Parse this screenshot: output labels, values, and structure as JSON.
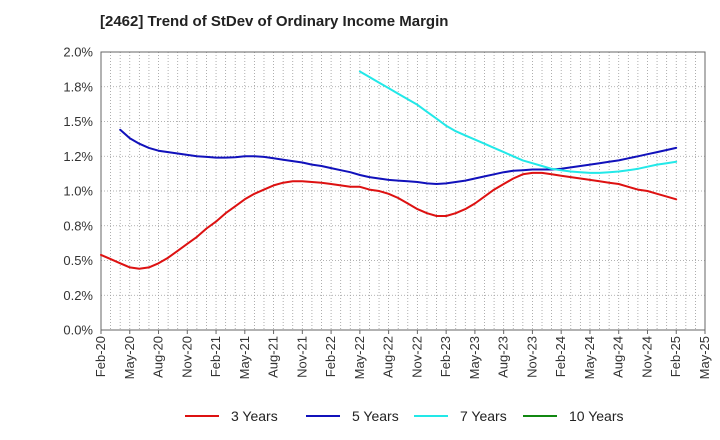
{
  "title": "[2462]  Trend of StDev of Ordinary Income Margin",
  "chart_data": {
    "type": "line",
    "title": "[2462]  Trend of StDev of Ordinary Income Margin",
    "xlabel": "",
    "ylabel": "",
    "x_ticks": [
      "Feb-20",
      "May-20",
      "Aug-20",
      "Nov-20",
      "Feb-21",
      "May-21",
      "Aug-21",
      "Nov-21",
      "Feb-22",
      "May-22",
      "Aug-22",
      "Nov-22",
      "Feb-23",
      "May-23",
      "Aug-23",
      "Nov-23",
      "Feb-24",
      "May-24",
      "Aug-24",
      "Nov-24",
      "Feb-25",
      "May-25"
    ],
    "y_ticks": [
      "0.0%",
      "0.2%",
      "0.5%",
      "0.8%",
      "1.0%",
      "1.2%",
      "1.5%",
      "1.8%",
      "2.0%"
    ],
    "ylim": [
      0,
      2.0
    ],
    "grid": true,
    "legend_position": "bottom",
    "series": [
      {
        "name": "3 Years",
        "color": "#dd1111",
        "points": [
          [
            "Feb-20",
            0.54
          ],
          [
            "Mar-20",
            0.51
          ],
          [
            "Apr-20",
            0.48
          ],
          [
            "May-20",
            0.45
          ],
          [
            "Jun-20",
            0.44
          ],
          [
            "Jul-20",
            0.45
          ],
          [
            "Aug-20",
            0.48
          ],
          [
            "Sep-20",
            0.52
          ],
          [
            "Oct-20",
            0.57
          ],
          [
            "Nov-20",
            0.62
          ],
          [
            "Dec-20",
            0.67
          ],
          [
            "Jan-21",
            0.73
          ],
          [
            "Feb-21",
            0.78
          ],
          [
            "Mar-21",
            0.84
          ],
          [
            "Apr-21",
            0.89
          ],
          [
            "May-21",
            0.94
          ],
          [
            "Jun-21",
            0.98
          ],
          [
            "Jul-21",
            1.01
          ],
          [
            "Aug-21",
            1.04
          ],
          [
            "Sep-21",
            1.06
          ],
          [
            "Oct-21",
            1.07
          ],
          [
            "Nov-21",
            1.07
          ],
          [
            "Dec-21",
            1.065
          ],
          [
            "Jan-22",
            1.06
          ],
          [
            "Feb-22",
            1.05
          ],
          [
            "Mar-22",
            1.04
          ],
          [
            "Apr-22",
            1.03
          ],
          [
            "May-22",
            1.03
          ],
          [
            "Jun-22",
            1.01
          ],
          [
            "Jul-22",
            1.0
          ],
          [
            "Aug-22",
            0.98
          ],
          [
            "Sep-22",
            0.95
          ],
          [
            "Oct-22",
            0.91
          ],
          [
            "Nov-22",
            0.87
          ],
          [
            "Dec-22",
            0.84
          ],
          [
            "Jan-23",
            0.82
          ],
          [
            "Feb-23",
            0.82
          ],
          [
            "Mar-23",
            0.84
          ],
          [
            "Apr-23",
            0.87
          ],
          [
            "May-23",
            0.91
          ],
          [
            "Jun-23",
            0.96
          ],
          [
            "Jul-23",
            1.01
          ],
          [
            "Aug-23",
            1.05
          ],
          [
            "Sep-23",
            1.09
          ],
          [
            "Oct-23",
            1.12
          ],
          [
            "Nov-23",
            1.13
          ],
          [
            "Dec-23",
            1.13
          ],
          [
            "Jan-24",
            1.12
          ],
          [
            "Feb-24",
            1.11
          ],
          [
            "Mar-24",
            1.1
          ],
          [
            "Apr-24",
            1.09
          ],
          [
            "May-24",
            1.08
          ],
          [
            "Jun-24",
            1.07
          ],
          [
            "Jul-24",
            1.06
          ],
          [
            "Aug-24",
            1.05
          ],
          [
            "Sep-24",
            1.03
          ],
          [
            "Oct-24",
            1.01
          ],
          [
            "Nov-24",
            1.0
          ],
          [
            "Dec-24",
            0.98
          ],
          [
            "Jan-25",
            0.96
          ],
          [
            "Feb-25",
            0.94
          ]
        ]
      },
      {
        "name": "5 Years",
        "color": "#1111bb",
        "points": [
          [
            "Apr-20",
            1.44
          ],
          [
            "May-20",
            1.38
          ],
          [
            "Jun-20",
            1.34
          ],
          [
            "Jul-20",
            1.31
          ],
          [
            "Aug-20",
            1.29
          ],
          [
            "Sep-20",
            1.28
          ],
          [
            "Oct-20",
            1.27
          ],
          [
            "Nov-20",
            1.26
          ],
          [
            "Dec-20",
            1.25
          ],
          [
            "Jan-21",
            1.245
          ],
          [
            "Feb-21",
            1.24
          ],
          [
            "Mar-21",
            1.24
          ],
          [
            "Apr-21",
            1.243
          ],
          [
            "May-21",
            1.25
          ],
          [
            "Jun-21",
            1.25
          ],
          [
            "Jul-21",
            1.245
          ],
          [
            "Aug-21",
            1.235
          ],
          [
            "Sep-21",
            1.225
          ],
          [
            "Oct-21",
            1.215
          ],
          [
            "Nov-21",
            1.205
          ],
          [
            "Dec-21",
            1.19
          ],
          [
            "Jan-22",
            1.18
          ],
          [
            "Feb-22",
            1.165
          ],
          [
            "Mar-22",
            1.15
          ],
          [
            "Apr-22",
            1.135
          ],
          [
            "May-22",
            1.115
          ],
          [
            "Jun-22",
            1.1
          ],
          [
            "Jul-22",
            1.09
          ],
          [
            "Aug-22",
            1.08
          ],
          [
            "Sep-22",
            1.075
          ],
          [
            "Oct-22",
            1.07
          ],
          [
            "Nov-22",
            1.065
          ],
          [
            "Dec-22",
            1.055
          ],
          [
            "Jan-23",
            1.05
          ],
          [
            "Feb-23",
            1.055
          ],
          [
            "Mar-23",
            1.065
          ],
          [
            "Apr-23",
            1.075
          ],
          [
            "May-23",
            1.09
          ],
          [
            "Jun-23",
            1.105
          ],
          [
            "Jul-23",
            1.12
          ],
          [
            "Aug-23",
            1.135
          ],
          [
            "Sep-23",
            1.145
          ],
          [
            "Oct-23",
            1.15
          ],
          [
            "Nov-23",
            1.155
          ],
          [
            "Dec-23",
            1.155
          ],
          [
            "Jan-24",
            1.155
          ],
          [
            "Feb-24",
            1.16
          ],
          [
            "Mar-24",
            1.17
          ],
          [
            "Apr-24",
            1.18
          ],
          [
            "May-24",
            1.19
          ],
          [
            "Jun-24",
            1.2
          ],
          [
            "Jul-24",
            1.21
          ],
          [
            "Aug-24",
            1.22
          ],
          [
            "Sep-24",
            1.235
          ],
          [
            "Oct-24",
            1.25
          ],
          [
            "Nov-24",
            1.265
          ],
          [
            "Dec-24",
            1.28
          ],
          [
            "Jan-25",
            1.295
          ],
          [
            "Feb-25",
            1.31
          ]
        ]
      },
      {
        "name": "7 Years",
        "color": "#22e8e8",
        "points": [
          [
            "May-22",
            1.86
          ],
          [
            "Jun-22",
            1.82
          ],
          [
            "Jul-22",
            1.78
          ],
          [
            "Aug-22",
            1.74
          ],
          [
            "Sep-22",
            1.7
          ],
          [
            "Oct-22",
            1.66
          ],
          [
            "Nov-22",
            1.62
          ],
          [
            "Dec-22",
            1.57
          ],
          [
            "Jan-23",
            1.52
          ],
          [
            "Feb-23",
            1.47
          ],
          [
            "Mar-23",
            1.43
          ],
          [
            "Apr-23",
            1.4
          ],
          [
            "May-23",
            1.37
          ],
          [
            "Jun-23",
            1.34
          ],
          [
            "Jul-23",
            1.31
          ],
          [
            "Aug-23",
            1.28
          ],
          [
            "Sep-23",
            1.25
          ],
          [
            "Oct-23",
            1.22
          ],
          [
            "Nov-23",
            1.2
          ],
          [
            "Dec-23",
            1.18
          ],
          [
            "Jan-24",
            1.16
          ],
          [
            "Feb-24",
            1.15
          ],
          [
            "Mar-24",
            1.14
          ],
          [
            "Apr-24",
            1.135
          ],
          [
            "May-24",
            1.13
          ],
          [
            "Jun-24",
            1.13
          ],
          [
            "Jul-24",
            1.135
          ],
          [
            "Aug-24",
            1.14
          ],
          [
            "Sep-24",
            1.15
          ],
          [
            "Oct-24",
            1.16
          ],
          [
            "Nov-24",
            1.175
          ],
          [
            "Dec-24",
            1.19
          ],
          [
            "Jan-25",
            1.2
          ],
          [
            "Feb-25",
            1.21
          ]
        ]
      },
      {
        "name": "10 Years",
        "color": "#118811",
        "points": []
      }
    ]
  }
}
